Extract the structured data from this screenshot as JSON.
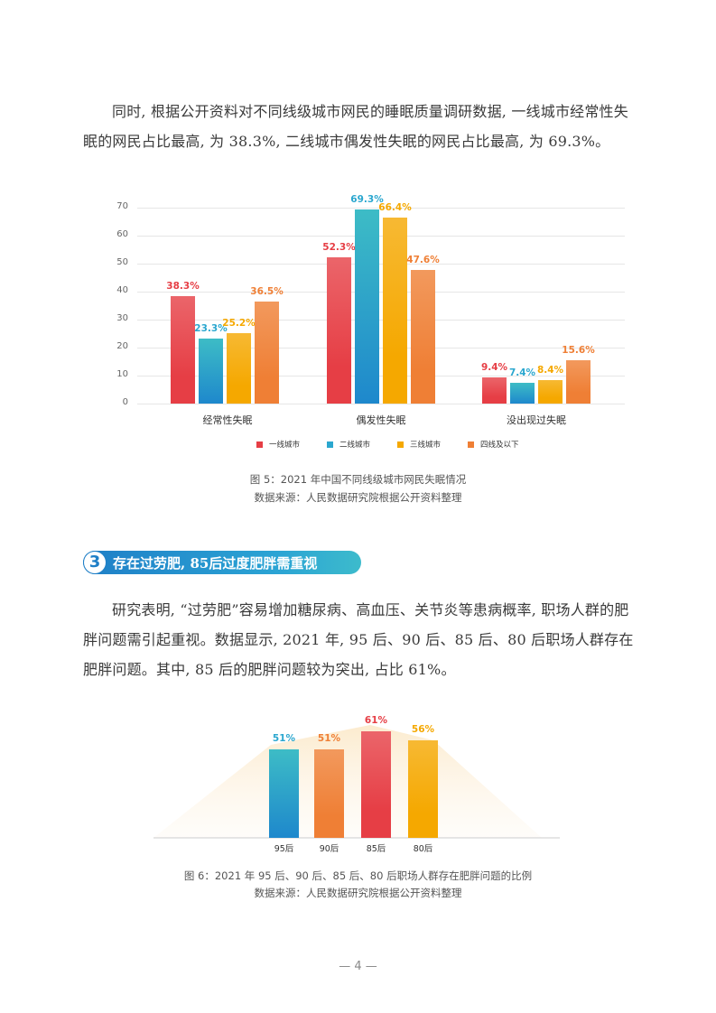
{
  "paragraphs": {
    "p1": "同时, 根据公开资料对不同线级城市网民的睡眠质量调研数据, 一线城市经常性失眠的网民占比最高, 为 38.3%, 二线城市偶发性失眠的网民占比最高, 为 69.3%。",
    "p2": "研究表明, “过劳肥”容易增加糖尿病、高血压、关节炎等患病概率, 职场人群的肥胖问题需引起重视。数据显示, 2021 年, 95 后、90 后、85 后、80 后职场人群存在肥胖问题。其中, 85 后的肥胖问题较为突出, 占比 61%。"
  },
  "section": {
    "number": "3",
    "title": "存在过劳肥, 85后过度肥胖需重视"
  },
  "figure5": {
    "caption": "图 5：2021 年中国不同线级城市网民失眠情况",
    "source": "数据来源：人民数据研究院根据公开资料整理"
  },
  "figure6": {
    "caption": "图 6：2021 年 95 后、90 后、85 后、80 后职场人群存在肥胖问题的比例",
    "source": "数据来源：人民数据研究院根据公开资料整理"
  },
  "page_number": "— 4 —",
  "colors": {
    "red": "#e63e45",
    "teal": "#2ba7cf",
    "yellow": "#f5a800",
    "orange": "#ef7f35"
  },
  "chart_data": [
    {
      "type": "bar",
      "title": "2021 年中国不同线级城市网民失眠情况",
      "categories": [
        "经常性失眠",
        "偶发性失眠",
        "没出现过失眠"
      ],
      "series": [
        {
          "name": "一线城市",
          "values": [
            38.3,
            52.3,
            9.4
          ],
          "labels": [
            "38.3%",
            "52.3%",
            "9.4%"
          ],
          "color": "#e63e45"
        },
        {
          "name": "二线城市",
          "values": [
            23.3,
            69.3,
            7.4
          ],
          "labels": [
            "23.3%",
            "69.3%",
            "7.4%"
          ],
          "color": "#2ba7cf"
        },
        {
          "name": "三线城市",
          "values": [
            25.2,
            66.4,
            8.4
          ],
          "labels": [
            "25.2%",
            "66.4%",
            "8.4%"
          ],
          "color": "#f5a800"
        },
        {
          "name": "四线及以下",
          "values": [
            36.5,
            47.6,
            15.6
          ],
          "labels": [
            "36.5%",
            "47.6%",
            "15.6%"
          ],
          "color": "#ef7f35"
        }
      ],
      "yticks": [
        "0",
        "10",
        "20",
        "30",
        "40",
        "50",
        "60",
        "70"
      ],
      "ylim": [
        0,
        70
      ],
      "grid": true,
      "legend_position": "bottom"
    },
    {
      "type": "bar",
      "title": "2021 年 95 后、90 后、85 后、80 后职场人群存在肥胖问题的比例",
      "categories": [
        "95后",
        "90后",
        "85后",
        "80后"
      ],
      "values": [
        51,
        51,
        61,
        56
      ],
      "labels": [
        "51%",
        "51%",
        "61%",
        "56%"
      ],
      "colors": [
        "#2ba7cf",
        "#ef7f35",
        "#e63e45",
        "#f5a800"
      ],
      "grid": false
    }
  ]
}
